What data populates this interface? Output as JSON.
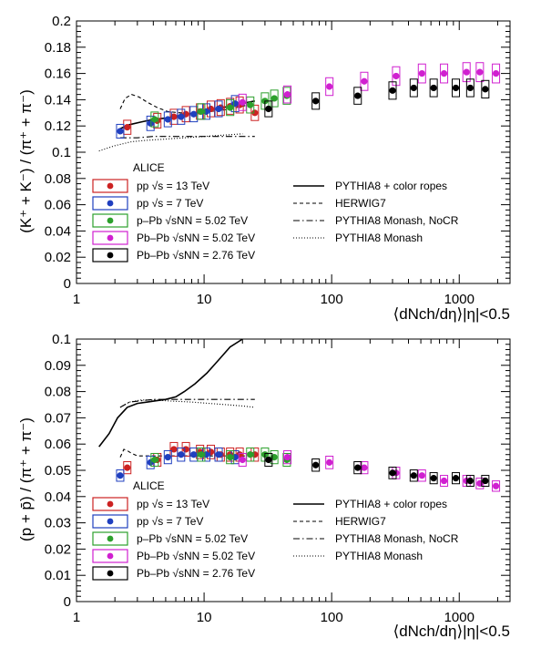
{
  "figure": {
    "experiment": "ALICE",
    "legend_data": [
      {
        "name": "pp √s = 13 TeV",
        "color": "#cc2222"
      },
      {
        "name": "pp √s = 7 TeV",
        "color": "#1f3fbf"
      },
      {
        "name": "p–Pb √sNN = 5.02 TeV",
        "color": "#2ca02c"
      },
      {
        "name": "Pb–Pb √sNN = 5.02 TeV",
        "color": "#d020d0"
      },
      {
        "name": "Pb–Pb √sNN = 2.76 TeV",
        "color": "#000000"
      }
    ],
    "legend_models": [
      {
        "name": "PYTHIA8 + color ropes",
        "style": "solid"
      },
      {
        "name": "HERWIG7",
        "style": "dashed"
      },
      {
        "name": "PYTHIA8 Monash, NoCR",
        "style": "dashdot"
      },
      {
        "name": "PYTHIA8 Monash",
        "style": "dotted"
      }
    ]
  },
  "chart_data": [
    {
      "type": "scatter",
      "ylabel": "(K⁺ + K⁻) / (π⁺ + π⁻)",
      "xlabel": "⟨dNch/dη⟩|η|<0.5",
      "xscale": "log",
      "xlim": [
        1,
        2500
      ],
      "ylim": [
        0,
        0.2
      ],
      "yticks": [
        "0",
        "0.02",
        "0.04",
        "0.06",
        "0.08",
        "0.1",
        "0.12",
        "0.14",
        "0.16",
        "0.18",
        "0.2"
      ],
      "xticks": [
        "1",
        "10",
        "100",
        "1000"
      ],
      "series": [
        {
          "name": "pp √s = 13 TeV",
          "x": [
            2.5,
            4.3,
            5.8,
            7.2,
            9.3,
            11.3,
            13.5,
            16.0,
            19.0,
            25.0
          ],
          "y": [
            0.119,
            0.124,
            0.127,
            0.129,
            0.131,
            0.133,
            0.134,
            0.135,
            0.136,
            0.13
          ]
        },
        {
          "name": "pp √s = 7 TeV",
          "x": [
            2.2,
            3.8,
            5.2,
            6.6,
            8.3,
            10.4,
            13.0,
            17.5
          ],
          "y": [
            0.116,
            0.122,
            0.125,
            0.127,
            0.129,
            0.131,
            0.133,
            0.137
          ]
        },
        {
          "name": "p–Pb √sNN = 5.02 TeV",
          "x": [
            4.1,
            9.5,
            16.0,
            23.0,
            30.0,
            35.5,
            44.5
          ],
          "y": [
            0.125,
            0.131,
            0.134,
            0.136,
            0.139,
            0.141,
            0.143
          ]
        },
        {
          "name": "Pb–Pb √sNN = 5.02 TeV",
          "x": [
            20.0,
            45.0,
            96.0,
            180.0,
            320.0,
            510.0,
            760.0,
            1140.0,
            1450.0,
            1940.0
          ],
          "y": [
            0.138,
            0.144,
            0.15,
            0.154,
            0.158,
            0.16,
            0.16,
            0.161,
            0.161,
            0.16
          ]
        },
        {
          "name": "Pb–Pb √sNN = 2.76 TeV",
          "x": [
            32.0,
            75.0,
            160.0,
            300.0,
            440.0,
            630.0,
            940.0,
            1220.0,
            1600.0
          ],
          "y": [
            0.133,
            0.139,
            0.143,
            0.147,
            0.149,
            0.149,
            0.149,
            0.149,
            0.148
          ]
        }
      ],
      "models": [
        {
          "name": "PYTHIA8 + color ropes",
          "x": [
            2.2,
            2.6,
            3.2,
            4.0,
            5.0,
            6.5,
            8.5,
            11.0,
            14.0,
            18.0,
            22.0,
            25.0
          ],
          "y": [
            0.118,
            0.121,
            0.123,
            0.125,
            0.126,
            0.128,
            0.13,
            0.132,
            0.134,
            0.136,
            0.138,
            0.139
          ]
        },
        {
          "name": "HERWIG7",
          "x": [
            2.2,
            2.4,
            2.7,
            3.1,
            3.6,
            4.3,
            5.2,
            6.5,
            8.5,
            11.0,
            14.0,
            18.0,
            22.0
          ],
          "y": [
            0.133,
            0.141,
            0.144,
            0.142,
            0.138,
            0.134,
            0.131,
            0.13,
            0.13,
            0.131,
            0.132,
            0.134,
            0.136
          ]
        },
        {
          "name": "PYTHIA8 Monash, NoCR",
          "x": [
            2.2,
            3.0,
            4.0,
            6.0,
            9.0,
            13.0,
            18.0,
            25.0
          ],
          "y": [
            0.111,
            0.111,
            0.112,
            0.112,
            0.112,
            0.112,
            0.112,
            0.112
          ]
        },
        {
          "name": "PYTHIA8 Monash",
          "x": [
            1.5,
            2.0,
            2.7,
            3.5,
            5.0,
            7.0,
            10.0,
            14.0,
            20.0
          ],
          "y": [
            0.101,
            0.105,
            0.108,
            0.109,
            0.11,
            0.111,
            0.112,
            0.113,
            0.114
          ]
        }
      ]
    },
    {
      "type": "scatter",
      "ylabel": "(p + p̄) / (π⁺ + π⁻)",
      "xlabel": "⟨dNch/dη⟩|η|<0.5",
      "xscale": "log",
      "xlim": [
        1,
        2500
      ],
      "ylim": [
        0,
        0.1
      ],
      "yticks": [
        "0",
        "0.01",
        "0.02",
        "0.03",
        "0.04",
        "0.05",
        "0.06",
        "0.07",
        "0.08",
        "0.09",
        "0.1"
      ],
      "xticks": [
        "1",
        "10",
        "100",
        "1000"
      ],
      "series": [
        {
          "name": "pp √s = 13 TeV",
          "x": [
            2.5,
            4.3,
            5.8,
            7.2,
            9.3,
            11.3,
            13.5,
            16.0,
            19.0,
            25.0
          ],
          "y": [
            0.051,
            0.054,
            0.058,
            0.058,
            0.057,
            0.057,
            0.056,
            0.056,
            0.056,
            0.056
          ]
        },
        {
          "name": "pp √s = 7 TeV",
          "x": [
            2.2,
            3.8,
            5.2,
            6.6,
            8.3,
            10.4,
            13.0,
            17.5
          ],
          "y": [
            0.048,
            0.053,
            0.055,
            0.056,
            0.056,
            0.056,
            0.056,
            0.055
          ]
        },
        {
          "name": "p–Pb √sNN = 5.02 TeV",
          "x": [
            4.1,
            9.5,
            16.0,
            23.0,
            30.0,
            35.5,
            44.5
          ],
          "y": [
            0.054,
            0.056,
            0.055,
            0.056,
            0.056,
            0.055,
            0.054
          ]
        },
        {
          "name": "Pb–Pb √sNN = 5.02 TeV",
          "x": [
            20.0,
            45.0,
            96.0,
            180.0,
            320.0,
            510.0,
            760.0,
            1140.0,
            1450.0,
            1940.0
          ],
          "y": [
            0.054,
            0.055,
            0.053,
            0.051,
            0.049,
            0.048,
            0.046,
            0.046,
            0.045,
            0.044
          ]
        },
        {
          "name": "Pb–Pb √sNN = 2.76 TeV",
          "x": [
            32.0,
            75.0,
            160.0,
            300.0,
            440.0,
            630.0,
            940.0,
            1220.0,
            1600.0
          ],
          "y": [
            0.054,
            0.052,
            0.051,
            0.049,
            0.048,
            0.047,
            0.047,
            0.046,
            0.046
          ]
        }
      ],
      "models": [
        {
          "name": "PYTHIA8 + color ropes",
          "x": [
            1.5,
            1.8,
            2.1,
            2.5,
            3.0,
            3.6,
            4.2,
            5.0,
            6.0,
            7.0,
            8.5,
            10.5,
            13.0,
            16.0,
            20.0
          ],
          "y": [
            0.059,
            0.064,
            0.07,
            0.074,
            0.0755,
            0.076,
            0.0765,
            0.077,
            0.078,
            0.08,
            0.083,
            0.087,
            0.092,
            0.097,
            0.1
          ]
        },
        {
          "name": "HERWIG7",
          "x": [
            2.2,
            2.35,
            2.5,
            2.7,
            3.0,
            3.5,
            4.5,
            6.0,
            8.0,
            11.0,
            15.0,
            20.0,
            25.0
          ],
          "y": [
            0.055,
            0.058,
            0.0575,
            0.0565,
            0.0555,
            0.0555,
            0.0555,
            0.0555,
            0.0555,
            0.0555,
            0.0555,
            0.0555,
            0.0555
          ]
        },
        {
          "name": "PYTHIA8 Monash, NoCR",
          "x": [
            2.2,
            2.6,
            3.2,
            4.0,
            5.0,
            7.0,
            10.0,
            14.0,
            18.0,
            25.0
          ],
          "y": [
            0.074,
            0.076,
            0.0765,
            0.077,
            0.077,
            0.077,
            0.077,
            0.077,
            0.077,
            0.077
          ]
        },
        {
          "name": "PYTHIA8 Monash",
          "x": [
            2.2,
            2.6,
            3.2,
            4.0,
            5.5,
            8.0,
            11.0,
            15.0,
            20.0,
            25.0
          ],
          "y": [
            0.074,
            0.076,
            0.0768,
            0.0768,
            0.0764,
            0.076,
            0.0755,
            0.075,
            0.0745,
            0.074
          ]
        }
      ]
    }
  ]
}
